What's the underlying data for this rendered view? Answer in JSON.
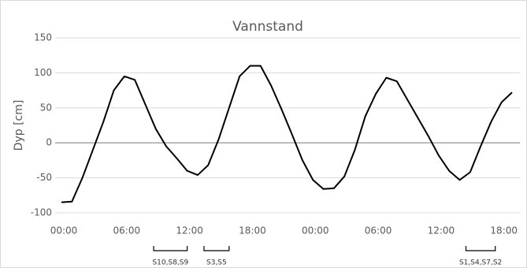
{
  "chart_data": {
    "type": "line",
    "title": "Vannstand",
    "y_label": "Dyp [cm]",
    "x": [
      0,
      1,
      2,
      3,
      4,
      5,
      6,
      7,
      8,
      9,
      10,
      11,
      12,
      13,
      14,
      15,
      16,
      17,
      18,
      19,
      20,
      21,
      22,
      23,
      24,
      25,
      26,
      27,
      28,
      29,
      30,
      31,
      32,
      33,
      34,
      35,
      36,
      37,
      38,
      39,
      40,
      41,
      42,
      43
    ],
    "series": [
      {
        "name": "Vannstand",
        "color": "#000000",
        "values": [
          -85,
          -84,
          -50,
          -10,
          30,
          75,
          95,
          90,
          55,
          20,
          -5,
          -22,
          -40,
          -46,
          -32,
          5,
          50,
          95,
          110,
          110,
          82,
          48,
          12,
          -25,
          -53,
          -66,
          -65,
          -48,
          -10,
          38,
          70,
          93,
          88,
          62,
          36,
          10,
          -18,
          -40,
          -53,
          -42,
          -5,
          30,
          58,
          72
        ]
      }
    ],
    "xlim": [
      0,
      43.75
    ],
    "xticks": [
      {
        "value": 0,
        "label": "00:00"
      },
      {
        "value": 6,
        "label": "06:00"
      },
      {
        "value": 12,
        "label": "12:00"
      },
      {
        "value": 18,
        "label": "18:00"
      },
      {
        "value": 24,
        "label": "00:00"
      },
      {
        "value": 30,
        "label": "06:00"
      },
      {
        "value": 36,
        "label": "12:00"
      },
      {
        "value": 42,
        "label": "18:00"
      }
    ],
    "ylim": [
      -100,
      150
    ],
    "yticks": [
      -100,
      -50,
      0,
      50,
      100,
      150
    ],
    "grid": true,
    "annotations": [
      {
        "label": "S10,S8,S9",
        "x": [
          8.8,
          12
        ]
      },
      {
        "label": "S3,S5",
        "x": [
          13.6,
          16
        ]
      },
      {
        "label": "S1,S4,S7,S2",
        "x": [
          38.6,
          41.4
        ]
      }
    ]
  }
}
